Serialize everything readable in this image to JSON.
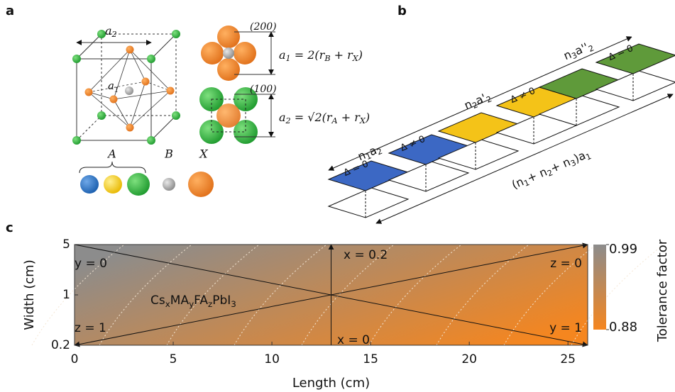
{
  "panel_a": {
    "label": "a",
    "lattice_a2": [
      "a",
      "2"
    ],
    "lattice_a1": [
      "a",
      "1"
    ],
    "plane_200": "(200)",
    "formula_a1": [
      "a",
      "1",
      " = 2(r",
      "B",
      " + r",
      "X",
      ")"
    ],
    "plane_100": "(100)",
    "formula_a2": [
      "a",
      "2",
      " = √2(r",
      "A",
      " + r",
      "X",
      ")"
    ],
    "site_A": "A",
    "site_B": "B",
    "site_X": "X"
  },
  "panel_b": {
    "label": "b",
    "segment_1": [
      "n",
      "1",
      "a",
      "2"
    ],
    "segment_2": [
      "n",
      "2",
      "a'",
      "2"
    ],
    "segment_3": [
      "n",
      "3",
      "a''",
      "2"
    ],
    "total": [
      "(n",
      "1",
      "+ n",
      "2",
      "+ n",
      "3",
      ")a",
      "1"
    ],
    "mismatch_labels": [
      "Δ = 0",
      "Δ ≠ 0",
      "Δ ≠ 0",
      "Δ = 0"
    ]
  },
  "chart_data": {
    "type": "heatmap",
    "panel_label": "c",
    "xlabel": "Length (cm)",
    "ylabel": "Width (cm)",
    "xlim": [
      0,
      26
    ],
    "xticks": [
      0,
      5,
      10,
      15,
      20,
      25
    ],
    "ylim": [
      0.2,
      5
    ],
    "yticks": [
      0.2,
      1,
      5
    ],
    "yscale": "log",
    "colorbar": {
      "label": "Tolerance factor",
      "clim": [
        0.88,
        0.99
      ],
      "ticks": [
        0.99,
        0.88
      ],
      "colors": [
        "#f5861f",
        "#8c8c8c"
      ]
    },
    "annotations": [
      "y = 0",
      "x = 0.2",
      "z = 0",
      "z = 1",
      "x = 0",
      "y = 1"
    ],
    "compound": [
      "Cs",
      "x",
      "MA",
      "y",
      "FA",
      "z",
      "PbI",
      "3"
    ]
  }
}
